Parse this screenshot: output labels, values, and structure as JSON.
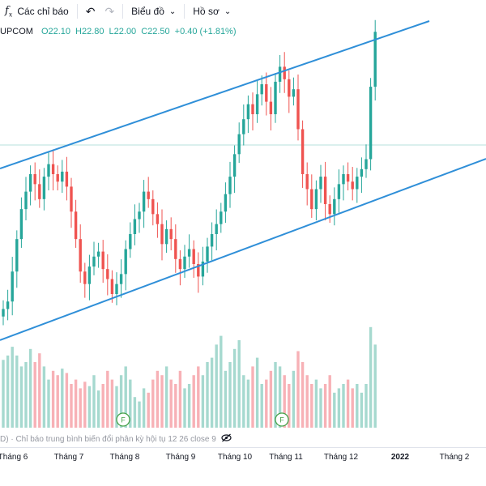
{
  "toolbar": {
    "indicators_icon": "fx-icon",
    "indicators_label": "Các chỉ báo",
    "undo_icon": "undo-icon",
    "redo_icon": "redo-icon",
    "chart_label": "Biểu đồ",
    "profile_label": "Hồ sơ"
  },
  "legend": {
    "symbol": "UPCOM",
    "open": "O22.10",
    "high": "H22.80",
    "low": "L22.00",
    "close": "C22.50",
    "change": "+0.40 (+1.81%)"
  },
  "indicator": {
    "label": "D) · Chỉ báo trung bình biến đổi phân kỳ hội tụ 12 26 close 9"
  },
  "time_axis": {
    "ticks": [
      {
        "label": "Tháng 6",
        "month_index": 0
      },
      {
        "label": "Tháng 7",
        "month_index": 1
      },
      {
        "label": "Tháng 8",
        "month_index": 2
      },
      {
        "label": "Tháng 9",
        "month_index": 3
      },
      {
        "label": "Tháng 10",
        "month_index": 4
      },
      {
        "label": "Tháng 11",
        "month_index": 5
      },
      {
        "label": "Tháng 12",
        "month_index": 6
      },
      {
        "label": "2022",
        "month_index": 7
      },
      {
        "label": "Tháng 2",
        "month_index": 8
      }
    ]
  },
  "colors": {
    "up": "#26a69a",
    "down": "#ef5350",
    "vol_up": "#a6d9cf",
    "vol_down": "#f7b1b6",
    "channel": "#2f8fd8",
    "price_line": "#b7e0dc"
  },
  "chart_data": {
    "type": "candlestick",
    "channel": "ascending parallel channel",
    "close_series": [
      13.6,
      13.9,
      15.1,
      16.4,
      17.6,
      18.3,
      19.0,
      18.6,
      18.0,
      18.9,
      19.4,
      19.0,
      18.7,
      19.1,
      18.5,
      17.5,
      16.4,
      15.1,
      14.6,
      15.3,
      15.7,
      15.9,
      15.2,
      14.8,
      14.2,
      14.6,
      15.0,
      16.0,
      16.6,
      17.2,
      17.5,
      18.3,
      18.0,
      17.4,
      17.0,
      16.2,
      16.8,
      16.4,
      15.6,
      15.2,
      15.7,
      16.0,
      15.4,
      14.9,
      15.5,
      16.1,
      16.6,
      17.0,
      17.5,
      18.2,
      18.9,
      19.8,
      20.6,
      21.2,
      21.8,
      21.4,
      22.2,
      22.6,
      21.9,
      21.4,
      22.7,
      23.3,
      22.8,
      22.1,
      22.4,
      20.8,
      19.0,
      18.4,
      17.6,
      18.4,
      18.9,
      17.8,
      17.4,
      18.0,
      18.6,
      19.0,
      18.7,
      18.4,
      18.9,
      19.2,
      19.6,
      22.5,
      24.7
    ],
    "volume_series": [
      31,
      33,
      37,
      33,
      28,
      30,
      36,
      30,
      34,
      28,
      22,
      26,
      24,
      27,
      25,
      20,
      22,
      18,
      21,
      19,
      24,
      17,
      20,
      26,
      22,
      19,
      24,
      28,
      22,
      14,
      12,
      18,
      16,
      22,
      26,
      24,
      28,
      22,
      20,
      26,
      18,
      20,
      24,
      28,
      24,
      30,
      32,
      38,
      42,
      26,
      30,
      36,
      40,
      24,
      22,
      28,
      32,
      20,
      22,
      26,
      30,
      28,
      24,
      20,
      26,
      35,
      30,
      24,
      20,
      22,
      18,
      20,
      24,
      16,
      18,
      20,
      22,
      18,
      20,
      16,
      20,
      46,
      38
    ]
  }
}
